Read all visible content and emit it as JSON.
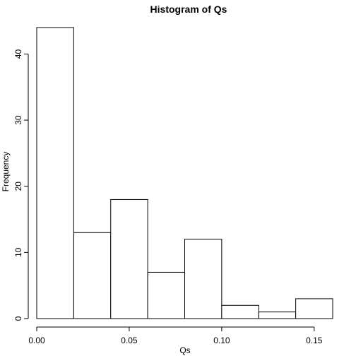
{
  "chart_data": {
    "type": "bar",
    "title": "Histogram of Qs",
    "xlabel": "Qs",
    "ylabel": "Frequency",
    "bins": [
      {
        "from": 0.0,
        "to": 0.02,
        "count": 44
      },
      {
        "from": 0.02,
        "to": 0.04,
        "count": 13
      },
      {
        "from": 0.04,
        "to": 0.06,
        "count": 18
      },
      {
        "from": 0.06,
        "to": 0.08,
        "count": 7
      },
      {
        "from": 0.08,
        "to": 0.1,
        "count": 12
      },
      {
        "from": 0.1,
        "to": 0.12,
        "count": 2
      },
      {
        "from": 0.12,
        "to": 0.14,
        "count": 1
      },
      {
        "from": 0.14,
        "to": 0.16,
        "count": 3
      }
    ],
    "x_ticks": [
      "0.00",
      "0.05",
      "0.10",
      "0.15"
    ],
    "y_ticks": [
      "0",
      "10",
      "20",
      "30",
      "40"
    ],
    "xlim": [
      0.0,
      0.16
    ],
    "ylim": [
      0,
      44
    ],
    "grid": false,
    "legend": "none"
  }
}
